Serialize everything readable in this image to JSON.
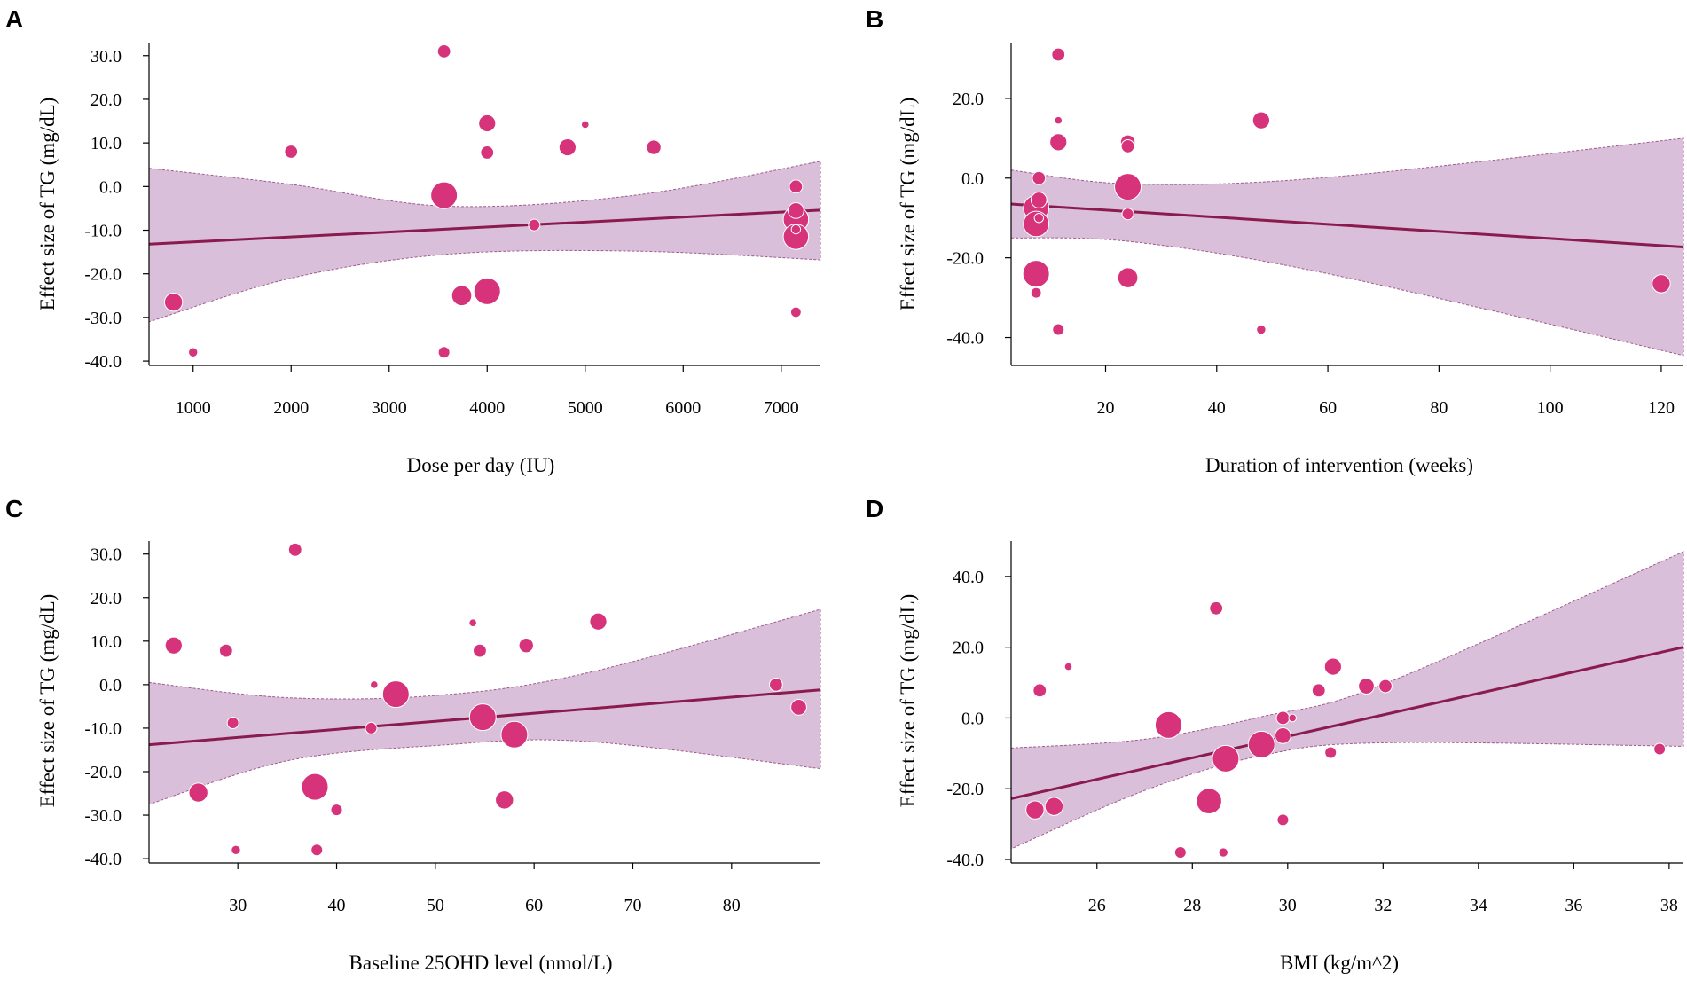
{
  "chart_data": [
    {
      "panel": "A",
      "type": "scatter",
      "subtype": "meta-regression bubble plot",
      "xlabel": "Dose per day (IU)",
      "ylabel": "Effect size of TG (mg/dL)",
      "xlim": [
        550,
        7400
      ],
      "ylim": [
        -41,
        33
      ],
      "xticks": [
        1000,
        2000,
        3000,
        4000,
        5000,
        6000,
        7000
      ],
      "xtick_labels": [
        "1000",
        "2000",
        "3000",
        "4000",
        "5000",
        "6000",
        "7000"
      ],
      "yticks": [
        -40,
        -30,
        -20,
        -10,
        0,
        10,
        20,
        30
      ],
      "ytick_labels": [
        "-40.0",
        "-30.0",
        "-20.0",
        "-10.0",
        "0.0",
        "10.0",
        "20.0",
        "30.0"
      ],
      "regression": {
        "x": [
          550,
          7400
        ],
        "y": [
          -13.2,
          -5.4
        ]
      },
      "ci_band": {
        "x": [
          550,
          2000,
          3600,
          5500,
          7400
        ],
        "upper": [
          4.2,
          0.5,
          -4.5,
          -2.0,
          5.8
        ],
        "lower": [
          -31.0,
          -21.0,
          -15.5,
          -14.8,
          -16.8
        ]
      },
      "points": [
        {
          "x": 3560,
          "y": 31.0,
          "w": 3
        },
        {
          "x": 2000,
          "y": 8.0,
          "w": 3
        },
        {
          "x": 4000,
          "y": 14.5,
          "w": 6
        },
        {
          "x": 4000,
          "y": 7.8,
          "w": 3
        },
        {
          "x": 5000,
          "y": 14.2,
          "w": 0.5
        },
        {
          "x": 4820,
          "y": 9.0,
          "w": 6
        },
        {
          "x": 5700,
          "y": 9.0,
          "w": 4
        },
        {
          "x": 3560,
          "y": -2.0,
          "w": 18
        },
        {
          "x": 4480,
          "y": -8.8,
          "w": 2
        },
        {
          "x": 7150,
          "y": 0.0,
          "w": 3
        },
        {
          "x": 7150,
          "y": -5.5,
          "w": 5
        },
        {
          "x": 7150,
          "y": -7.5,
          "w": 16
        },
        {
          "x": 7150,
          "y": -11.5,
          "w": 16
        },
        {
          "x": 7150,
          "y": -9.8,
          "w": 1
        },
        {
          "x": 3740,
          "y": -25.0,
          "w": 9
        },
        {
          "x": 4000,
          "y": -24.0,
          "w": 18
        },
        {
          "x": 800,
          "y": -26.5,
          "w": 7
        },
        {
          "x": 7150,
          "y": -28.8,
          "w": 1.5
        },
        {
          "x": 1000,
          "y": -38.0,
          "w": 1
        },
        {
          "x": 3560,
          "y": -38.0,
          "w": 2
        }
      ]
    },
    {
      "panel": "B",
      "type": "scatter",
      "subtype": "meta-regression bubble plot",
      "xlabel": "Duration of intervention (weeks)",
      "ylabel": "Effect size of TG (mg/dL)",
      "xlim": [
        3,
        124
      ],
      "ylim": [
        -47,
        34
      ],
      "xticks": [
        20,
        40,
        60,
        80,
        100,
        120
      ],
      "xtick_labels": [
        "20",
        "40",
        "60",
        "80",
        "100",
        "120"
      ],
      "yticks": [
        -40,
        -20,
        0,
        20
      ],
      "ytick_labels": [
        "-40.0",
        "-20.0",
        "0.0",
        "20.0"
      ],
      "regression": {
        "x": [
          3,
          124
        ],
        "y": [
          -6.5,
          -17.3
        ]
      },
      "ci_band": {
        "x": [
          3,
          25,
          60,
          124
        ],
        "upper": [
          2.0,
          -1.5,
          0.2,
          10.0
        ],
        "lower": [
          -15.0,
          -16.0,
          -24.0,
          -44.5
        ]
      },
      "points": [
        {
          "x": 11.5,
          "y": 31.0,
          "w": 3
        },
        {
          "x": 11.5,
          "y": 14.5,
          "w": 0.5
        },
        {
          "x": 48,
          "y": 14.5,
          "w": 6
        },
        {
          "x": 11.5,
          "y": 9.0,
          "w": 6
        },
        {
          "x": 24,
          "y": 9.0,
          "w": 4
        },
        {
          "x": 24,
          "y": 8.0,
          "w": 3
        },
        {
          "x": 8,
          "y": 0.0,
          "w": 3
        },
        {
          "x": 24,
          "y": -2.2,
          "w": 18
        },
        {
          "x": 8,
          "y": -5.5,
          "w": 5
        },
        {
          "x": 7.5,
          "y": -7.5,
          "w": 16
        },
        {
          "x": 7.5,
          "y": -11.5,
          "w": 16
        },
        {
          "x": 24,
          "y": -9.0,
          "w": 2
        },
        {
          "x": 8,
          "y": -10.0,
          "w": 1
        },
        {
          "x": 7.5,
          "y": -24.0,
          "w": 18
        },
        {
          "x": 24,
          "y": -25.0,
          "w": 9
        },
        {
          "x": 120,
          "y": -26.5,
          "w": 7
        },
        {
          "x": 7.5,
          "y": -28.8,
          "w": 1.5
        },
        {
          "x": 11.5,
          "y": -38.0,
          "w": 2
        },
        {
          "x": 48,
          "y": -38.0,
          "w": 1
        }
      ]
    },
    {
      "panel": "C",
      "type": "scatter",
      "subtype": "meta-regression bubble plot",
      "xlabel": "Baseline 25OHD level (nmol/L)",
      "ylabel": "Effect size of TG (mg/dL)",
      "xlim": [
        21,
        89
      ],
      "ylim": [
        -41,
        33
      ],
      "xticks": [
        30,
        40,
        50,
        60,
        70,
        80
      ],
      "xtick_labels": [
        "30",
        "40",
        "50",
        "60",
        "70",
        "80"
      ],
      "yticks": [
        -40,
        -30,
        -20,
        -10,
        0,
        10,
        20,
        30
      ],
      "ytick_labels": [
        "-40.0",
        "-30.0",
        "-20.0",
        "-10.0",
        "0.0",
        "10.0",
        "20.0",
        "30.0"
      ],
      "regression": {
        "x": [
          21,
          89
        ],
        "y": [
          -13.8,
          -1.2
        ]
      },
      "ci_band": {
        "x": [
          21,
          35,
          50,
          65,
          89
        ],
        "upper": [
          0.5,
          -3.0,
          -2.5,
          2.5,
          17.3
        ],
        "lower": [
          -27.5,
          -17.5,
          -14.0,
          -13.0,
          -19.3
        ]
      },
      "points": [
        {
          "x": 35.8,
          "y": 31.0,
          "w": 3
        },
        {
          "x": 53.8,
          "y": 14.2,
          "w": 0.5
        },
        {
          "x": 66.5,
          "y": 14.5,
          "w": 6
        },
        {
          "x": 23.5,
          "y": 9.0,
          "w": 6
        },
        {
          "x": 59.2,
          "y": 9.0,
          "w": 4
        },
        {
          "x": 28.8,
          "y": 7.8,
          "w": 3
        },
        {
          "x": 54.5,
          "y": 7.8,
          "w": 3
        },
        {
          "x": 43.8,
          "y": 0.0,
          "w": 0.5
        },
        {
          "x": 84.5,
          "y": 0.0,
          "w": 3
        },
        {
          "x": 46,
          "y": -2.2,
          "w": 18
        },
        {
          "x": 86.8,
          "y": -5.2,
          "w": 5
        },
        {
          "x": 54.8,
          "y": -7.5,
          "w": 18
        },
        {
          "x": 29.5,
          "y": -8.8,
          "w": 2
        },
        {
          "x": 43.5,
          "y": -10.0,
          "w": 2
        },
        {
          "x": 58,
          "y": -11.5,
          "w": 18
        },
        {
          "x": 37.8,
          "y": -23.5,
          "w": 18
        },
        {
          "x": 26,
          "y": -24.8,
          "w": 8
        },
        {
          "x": 57,
          "y": -26.5,
          "w": 7
        },
        {
          "x": 40,
          "y": -28.8,
          "w": 2
        },
        {
          "x": 29.8,
          "y": -38.0,
          "w": 1
        },
        {
          "x": 38,
          "y": -38.0,
          "w": 2
        }
      ]
    },
    {
      "panel": "D",
      "type": "scatter",
      "subtype": "meta-regression bubble plot",
      "xlabel": "BMI (kg/m^2)",
      "ylabel": "Effect size of TG (mg/dL)",
      "xlim": [
        24.2,
        38.3
      ],
      "ylim": [
        -41,
        50
      ],
      "xticks": [
        26,
        28,
        30,
        32,
        34,
        36,
        38
      ],
      "xtick_labels": [
        "26",
        "28",
        "30",
        "32",
        "34",
        "36",
        "38"
      ],
      "yticks": [
        -40,
        -20,
        0,
        20,
        40
      ],
      "ytick_labels": [
        "-40.0",
        "-20.0",
        "0.0",
        "20.0",
        "40.0"
      ],
      "regression": {
        "x": [
          24.2,
          38.3
        ],
        "y": [
          -22.8,
          20.0
        ]
      },
      "ci_band": {
        "x": [
          24.2,
          27,
          29.5,
          32,
          38.3
        ],
        "upper": [
          -8.5,
          -6.0,
          0.5,
          9.5,
          47.0
        ],
        "lower": [
          -37.0,
          -20.5,
          -10.5,
          -7.0,
          -8.0
        ]
      },
      "points": [
        {
          "x": 28.5,
          "y": 31.0,
          "w": 3
        },
        {
          "x": 25.4,
          "y": 14.5,
          "w": 0.5
        },
        {
          "x": 30.95,
          "y": 14.5,
          "w": 6
        },
        {
          "x": 31.65,
          "y": 9.0,
          "w": 5
        },
        {
          "x": 32.05,
          "y": 9.0,
          "w": 3
        },
        {
          "x": 24.8,
          "y": 7.8,
          "w": 3
        },
        {
          "x": 30.65,
          "y": 7.8,
          "w": 3
        },
        {
          "x": 29.9,
          "y": 0.0,
          "w": 3
        },
        {
          "x": 30.1,
          "y": 0.0,
          "w": 0.5
        },
        {
          "x": 27.5,
          "y": -2.0,
          "w": 18
        },
        {
          "x": 29.9,
          "y": -5.0,
          "w": 5
        },
        {
          "x": 29.45,
          "y": -7.5,
          "w": 18
        },
        {
          "x": 30.9,
          "y": -9.8,
          "w": 2
        },
        {
          "x": 37.8,
          "y": -8.8,
          "w": 2
        },
        {
          "x": 28.7,
          "y": -11.5,
          "w": 18
        },
        {
          "x": 28.35,
          "y": -23.5,
          "w": 16
        },
        {
          "x": 25.1,
          "y": -25.0,
          "w": 7
        },
        {
          "x": 24.7,
          "y": -26.0,
          "w": 7
        },
        {
          "x": 29.9,
          "y": -28.8,
          "w": 2
        },
        {
          "x": 27.75,
          "y": -38.0,
          "w": 2
        },
        {
          "x": 28.65,
          "y": -38.0,
          "w": 1
        }
      ]
    }
  ],
  "colors": {
    "point": "#d6337a",
    "band": "#d9bfd9",
    "line": "#8b1a4f"
  }
}
